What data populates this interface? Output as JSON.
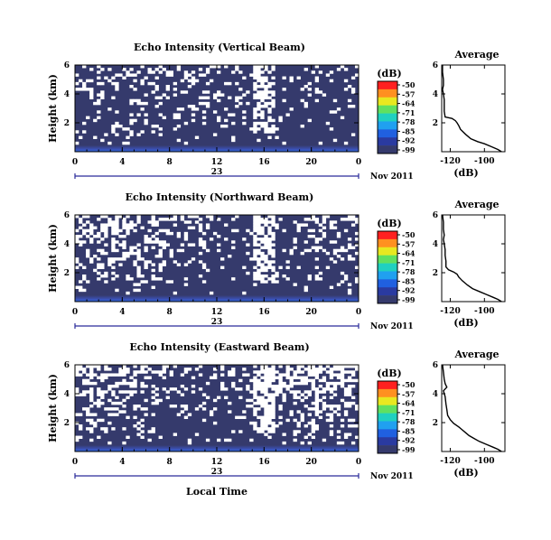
{
  "x_axis_label": "Local Time",
  "chart_data": [
    {
      "type": "heatmap",
      "title": "Echo Intensity (Vertical Beam)",
      "ylabel": "Height (km)",
      "xlabel": "",
      "x_ticks": [
        "0",
        "4",
        "8",
        "12",
        "16",
        "20",
        "0"
      ],
      "y_ticks": [
        "6",
        "4",
        "2"
      ],
      "xlim": [
        0,
        24
      ],
      "ylim": [
        0,
        6
      ],
      "day_label": "23",
      "date_label": "Nov 2011",
      "colorbar": {
        "unit": "(dB)",
        "ticks": [
          "-50",
          "-57",
          "-64",
          "-71",
          "-78",
          "-85",
          "-92",
          "-99"
        ]
      },
      "profile": {
        "title": "Average",
        "xlabel": "(dB)",
        "x_ticks": [
          "-120",
          "-100"
        ],
        "y_ticks": [
          "6",
          "4",
          "2"
        ],
        "xlim": [
          -125,
          -88
        ],
        "ylim": [
          0,
          6
        ],
        "x": [
          -124.5,
          -124.5,
          -124,
          -124,
          -124.5,
          -124,
          -123.5,
          -123.5,
          -123.5,
          -123,
          -119,
          -117,
          -116,
          -115,
          -114,
          -111,
          -108,
          -104,
          -100,
          -96,
          -92,
          -90
        ],
        "y": [
          6.0,
          5.5,
          5.0,
          4.6,
          4.3,
          4.0,
          3.6,
          3.2,
          2.8,
          2.4,
          2.3,
          2.15,
          2.0,
          1.8,
          1.55,
          1.2,
          0.9,
          0.7,
          0.55,
          0.35,
          0.15,
          0.0
        ]
      },
      "seed": 11,
      "clear_fraction": 0.22
    },
    {
      "type": "heatmap",
      "title": "Echo Intensity (Northward Beam)",
      "ylabel": "Height (km)",
      "xlabel": "",
      "x_ticks": [
        "0",
        "4",
        "8",
        "12",
        "16",
        "20",
        "0"
      ],
      "y_ticks": [
        "6",
        "4",
        "2"
      ],
      "xlim": [
        0,
        24
      ],
      "ylim": [
        0,
        6
      ],
      "day_label": "23",
      "date_label": "Nov 2011",
      "colorbar": {
        "unit": "(dB)",
        "ticks": [
          "-50",
          "-57",
          "-64",
          "-71",
          "-78",
          "-85",
          "-92",
          "-99"
        ]
      },
      "profile": {
        "title": "Average",
        "xlabel": "(dB)",
        "x_ticks": [
          "-120",
          "-100"
        ],
        "y_ticks": [
          "6",
          "4",
          "2"
        ],
        "xlim": [
          -125,
          -88
        ],
        "ylim": [
          0,
          6
        ],
        "x": [
          -124.5,
          -124,
          -124,
          -123.5,
          -124,
          -123.5,
          -123,
          -123,
          -122.5,
          -122.5,
          -121,
          -118,
          -116,
          -115,
          -113,
          -110,
          -107,
          -103,
          -99,
          -95,
          -92,
          -90
        ],
        "y": [
          6.0,
          5.5,
          5.0,
          4.6,
          4.3,
          4.0,
          3.6,
          3.2,
          2.8,
          2.4,
          2.2,
          2.05,
          1.9,
          1.7,
          1.45,
          1.15,
          0.9,
          0.7,
          0.5,
          0.3,
          0.15,
          0.0
        ]
      },
      "seed": 29,
      "clear_fraction": 0.3
    },
    {
      "type": "heatmap",
      "title": "Echo Intensity (Eastward Beam)",
      "ylabel": "Height (km)",
      "xlabel": "Local Time",
      "x_ticks": [
        "0",
        "4",
        "8",
        "12",
        "16",
        "20",
        "0"
      ],
      "y_ticks": [
        "6",
        "4",
        "2"
      ],
      "xlim": [
        0,
        24
      ],
      "ylim": [
        0,
        6
      ],
      "day_label": "23",
      "date_label": "Nov 2011",
      "colorbar": {
        "unit": "(dB)",
        "ticks": [
          "-50",
          "-57",
          "-64",
          "-71",
          "-78",
          "-85",
          "-92",
          "-99"
        ]
      },
      "profile": {
        "title": "Average",
        "xlabel": "(dB)",
        "x_ticks": [
          "-120",
          "-100"
        ],
        "y_ticks": [
          "6",
          "4",
          "2"
        ],
        "xlim": [
          -125,
          -88
        ],
        "ylim": [
          0,
          6
        ],
        "x": [
          -124.5,
          -124,
          -123.5,
          -123,
          -122,
          -124,
          -123,
          -122.5,
          -122,
          -121.5,
          -120,
          -118,
          -115,
          -113,
          -111,
          -109,
          -106,
          -103,
          -99,
          -95,
          -92,
          -90
        ],
        "y": [
          6.0,
          5.5,
          5.0,
          4.7,
          4.45,
          4.2,
          3.8,
          3.3,
          2.9,
          2.5,
          2.2,
          1.95,
          1.7,
          1.5,
          1.3,
          1.1,
          0.9,
          0.7,
          0.5,
          0.3,
          0.15,
          0.0
        ]
      },
      "seed": 47,
      "clear_fraction": 0.38
    }
  ]
}
